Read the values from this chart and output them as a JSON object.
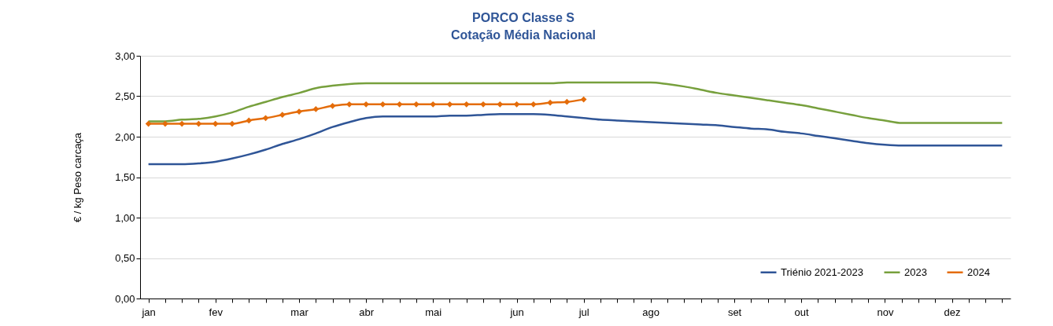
{
  "chart_data": {
    "type": "line",
    "title": "PORCO Classe S",
    "subtitle": "Cotação Média Nacional",
    "ylabel": "€ / kg Peso carcaça",
    "categories": [
      "jan",
      null,
      null,
      null,
      "fev",
      null,
      null,
      null,
      null,
      "mar",
      null,
      null,
      null,
      "abr",
      null,
      null,
      null,
      "mai",
      null,
      null,
      null,
      null,
      "jun",
      null,
      null,
      null,
      "jul",
      null,
      null,
      null,
      "ago",
      null,
      null,
      null,
      null,
      "set",
      null,
      null,
      null,
      "out",
      null,
      null,
      null,
      null,
      "nov",
      null,
      null,
      null,
      "dez",
      null,
      null,
      null
    ],
    "ylim": [
      0,
      3
    ],
    "yticks": [
      {
        "value": 0,
        "label": "0,00"
      },
      {
        "value": 0.5,
        "label": "0,50"
      },
      {
        "value": 1,
        "label": "1,00"
      },
      {
        "value": 1.5,
        "label": "1,50"
      },
      {
        "value": 2,
        "label": "2,00"
      },
      {
        "value": 2.5,
        "label": "2,50"
      },
      {
        "value": 3,
        "label": "3,00"
      }
    ],
    "grid": "y",
    "legend": "bottom right",
    "line_style": "solid",
    "series": [
      {
        "name": "Triénio 2021-2023",
        "color": "#2f5597",
        "values": [
          1.66,
          1.66,
          1.66,
          1.67,
          1.69,
          1.73,
          1.78,
          1.84,
          1.91,
          1.97,
          2.04,
          2.12,
          2.18,
          2.23,
          2.25,
          2.25,
          2.25,
          2.25,
          2.26,
          2.26,
          2.27,
          2.28,
          2.28,
          2.28,
          2.27,
          2.25,
          2.23,
          2.21,
          2.2,
          2.19,
          2.18,
          2.17,
          2.16,
          2.15,
          2.14,
          2.12,
          2.1,
          2.09,
          2.06,
          2.04,
          2.01,
          1.98,
          1.95,
          1.92,
          1.9,
          1.89,
          1.89,
          1.89,
          1.89,
          1.89,
          1.89,
          1.89
        ]
      },
      {
        "name": "2023",
        "color": "#77a03d",
        "values": [
          2.19,
          2.19,
          2.21,
          2.22,
          2.25,
          2.3,
          2.37,
          2.43,
          2.49,
          2.54,
          2.6,
          2.63,
          2.65,
          2.66,
          2.66,
          2.66,
          2.66,
          2.66,
          2.66,
          2.66,
          2.66,
          2.66,
          2.66,
          2.66,
          2.66,
          2.67,
          2.67,
          2.67,
          2.67,
          2.67,
          2.67,
          2.65,
          2.62,
          2.58,
          2.54,
          2.51,
          2.48,
          2.45,
          2.42,
          2.39,
          2.35,
          2.31,
          2.27,
          2.23,
          2.2,
          2.17,
          2.17,
          2.17,
          2.17,
          2.17,
          2.17,
          2.17
        ]
      },
      {
        "name": "2024",
        "color": "#e46c0a",
        "marker": "diamond",
        "values": [
          2.16,
          2.16,
          2.16,
          2.16,
          2.16,
          2.16,
          2.2,
          2.23,
          2.27,
          2.31,
          2.34,
          2.38,
          2.4,
          2.4,
          2.4,
          2.4,
          2.4,
          2.4,
          2.4,
          2.4,
          2.4,
          2.4,
          2.4,
          2.4,
          2.42,
          2.43,
          2.46,
          null,
          null,
          null,
          null,
          null,
          null,
          null,
          null,
          null,
          null,
          null,
          null,
          null,
          null,
          null,
          null,
          null,
          null,
          null,
          null,
          null,
          null,
          null,
          null,
          null
        ]
      }
    ]
  }
}
